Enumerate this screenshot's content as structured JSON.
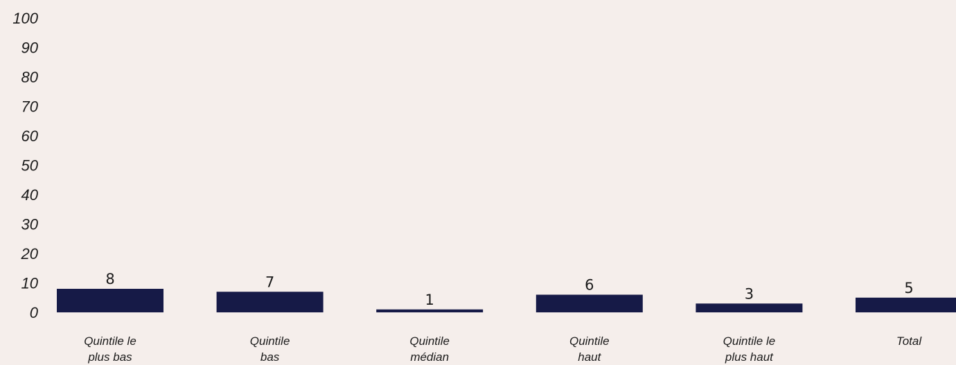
{
  "chart_data": {
    "type": "bar",
    "categories": [
      [
        "Quintile le",
        "plus bas"
      ],
      [
        "Quintile",
        "bas"
      ],
      [
        "Quintile",
        "médian"
      ],
      [
        "Quintile",
        "haut"
      ],
      [
        "Quintile le",
        "plus haut"
      ],
      [
        "Total"
      ]
    ],
    "values": [
      8,
      7,
      1,
      6,
      3,
      5
    ],
    "data_labels": [
      "8",
      "7",
      "1",
      "6",
      "3",
      "5"
    ],
    "ylim": [
      0,
      100
    ],
    "yticks": [
      0,
      10,
      20,
      30,
      40,
      50,
      60,
      70,
      80,
      90,
      100
    ],
    "grid": false,
    "legend": "none",
    "colors": {
      "bar": "#161a47",
      "background": "#f5eeeb",
      "text": "#1a1a1a"
    }
  }
}
